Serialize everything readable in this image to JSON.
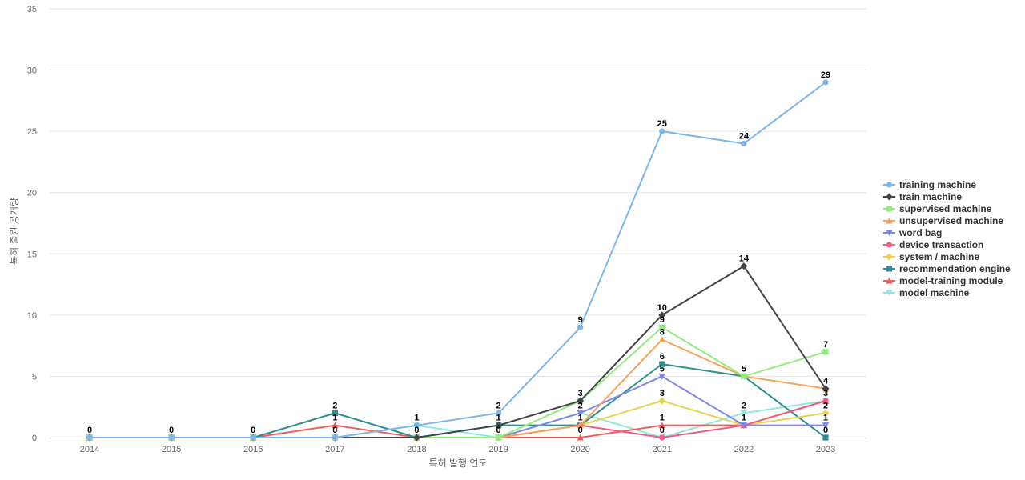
{
  "chart_data": {
    "type": "line",
    "x": [
      "2014",
      "2015",
      "2016",
      "2017",
      "2018",
      "2019",
      "2020",
      "2021",
      "2022",
      "2023"
    ],
    "xlabel": "특허 발행 연도",
    "ylabel": "특허 출원 공개량",
    "ylim": [
      0,
      35
    ],
    "yticks": [
      0,
      5,
      10,
      15,
      20,
      25,
      30,
      35
    ],
    "grid": true,
    "legend_position": "right",
    "series": [
      {
        "name": "training machine",
        "color": "#7cb5ec",
        "marker": "circle",
        "values": [
          0,
          0,
          0,
          0,
          1,
          2,
          9,
          25,
          24,
          29
        ]
      },
      {
        "name": "train machine",
        "color": "#434348",
        "marker": "diamond",
        "values": [
          0,
          0,
          0,
          0,
          0,
          1,
          3,
          10,
          14,
          4
        ]
      },
      {
        "name": "supervised machine",
        "color": "#90ed7d",
        "marker": "square",
        "values": [
          0,
          0,
          0,
          0,
          0,
          0,
          3,
          9,
          5,
          7
        ]
      },
      {
        "name": "unsupervised machine",
        "color": "#f7a35c",
        "marker": "triangle",
        "values": [
          0,
          0,
          0,
          0,
          0,
          0,
          1,
          8,
          5,
          4
        ]
      },
      {
        "name": "word bag",
        "color": "#8085e9",
        "marker": "triangle-down",
        "values": [
          0,
          0,
          0,
          0,
          0,
          0,
          2,
          5,
          1,
          1
        ]
      },
      {
        "name": "device transaction",
        "color": "#f15c80",
        "marker": "circle",
        "values": [
          0,
          0,
          0,
          0,
          0,
          0,
          1,
          0,
          1,
          3
        ]
      },
      {
        "name": "system / machine",
        "color": "#e4d354",
        "marker": "diamond",
        "values": [
          0,
          0,
          0,
          0,
          0,
          0,
          1,
          3,
          1,
          2
        ]
      },
      {
        "name": "recommendation engine",
        "color": "#2b908f",
        "marker": "square",
        "values": [
          0,
          0,
          0,
          2,
          0,
          1,
          1,
          6,
          5,
          0
        ]
      },
      {
        "name": "model-training module",
        "color": "#f45b5b",
        "marker": "triangle",
        "values": [
          0,
          0,
          0,
          1,
          0,
          0,
          0,
          1,
          1,
          3
        ]
      },
      {
        "name": "model machine",
        "color": "#91e8e1",
        "marker": "triangle-down",
        "values": [
          0,
          0,
          0,
          0,
          1,
          0,
          2,
          0,
          2,
          3
        ]
      }
    ],
    "data_labels": [
      {
        "x": "2014",
        "text": "0"
      },
      {
        "x": "2015",
        "text": "0"
      },
      {
        "x": "2016",
        "text": "0"
      },
      {
        "x": "2017",
        "text": "2"
      },
      {
        "x": "2017",
        "text": "1"
      },
      {
        "x": "2017",
        "text": "0"
      },
      {
        "x": "2018",
        "text": "1"
      },
      {
        "x": "2018",
        "text": "0"
      },
      {
        "x": "2019",
        "text": "2"
      },
      {
        "x": "2019",
        "text": "1"
      },
      {
        "x": "2019",
        "text": "0"
      },
      {
        "x": "2020",
        "text": "9"
      },
      {
        "x": "2020",
        "text": "3"
      },
      {
        "x": "2020",
        "text": "2"
      },
      {
        "x": "2020",
        "text": "1"
      },
      {
        "x": "2020",
        "text": "0"
      },
      {
        "x": "2021",
        "text": "25"
      },
      {
        "x": "2021",
        "text": "10"
      },
      {
        "x": "2021",
        "text": "9"
      },
      {
        "x": "2021",
        "text": "8"
      },
      {
        "x": "2021",
        "text": "6"
      },
      {
        "x": "2021",
        "text": "5"
      },
      {
        "x": "2021",
        "text": "3"
      },
      {
        "x": "2021",
        "text": "1"
      },
      {
        "x": "2021",
        "text": "0"
      },
      {
        "x": "2022",
        "text": "24"
      },
      {
        "x": "2022",
        "text": "14"
      },
      {
        "x": "2022",
        "text": "5"
      },
      {
        "x": "2022",
        "text": "2"
      },
      {
        "x": "2022",
        "text": "1"
      },
      {
        "x": "2023",
        "text": "29"
      },
      {
        "x": "2023",
        "text": "7"
      },
      {
        "x": "2023",
        "text": "4"
      },
      {
        "x": "2023",
        "text": "3"
      },
      {
        "x": "2023",
        "text": "2"
      },
      {
        "x": "2023",
        "text": "1"
      },
      {
        "x": "2023",
        "text": "0"
      }
    ]
  }
}
